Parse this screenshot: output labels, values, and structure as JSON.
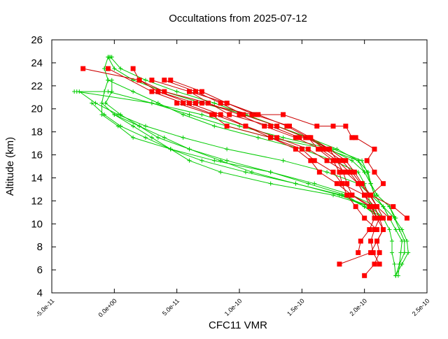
{
  "chart_data": {
    "type": "line",
    "title": "Occultations from 2025-07-12",
    "xlabel": "CFC11 VMR",
    "ylabel": "Altitude (km)",
    "xlim": [
      -5e-11,
      2.5e-10
    ],
    "ylim": [
      4,
      26
    ],
    "x_ticks": [
      {
        "value": -5e-11,
        "label": "-5.0e-11"
      },
      {
        "value": 0,
        "label": "0.0e+00"
      },
      {
        "value": 5e-11,
        "label": "5.0e-11"
      },
      {
        "value": 1e-10,
        "label": "1.0e-10"
      },
      {
        "value": 1.5e-10,
        "label": "1.5e-10"
      },
      {
        "value": 2e-10,
        "label": "2.0e-10"
      },
      {
        "value": 2.5e-10,
        "label": "2.5e-10"
      }
    ],
    "y_ticks": [
      {
        "value": 4,
        "label": "4"
      },
      {
        "value": 6,
        "label": "6"
      },
      {
        "value": 8,
        "label": "8"
      },
      {
        "value": 10,
        "label": "10"
      },
      {
        "value": 12,
        "label": "12"
      },
      {
        "value": 14,
        "label": "14"
      },
      {
        "value": 16,
        "label": "16"
      },
      {
        "value": 18,
        "label": "18"
      },
      {
        "value": 20,
        "label": "20"
      },
      {
        "value": 22,
        "label": "22"
      },
      {
        "value": 24,
        "label": "24"
      },
      {
        "value": 26,
        "label": "26"
      }
    ],
    "grid": false,
    "colors": {
      "red_series": "#cc0000",
      "red_marker": "#ff0000",
      "green_series": "#00cc00"
    },
    "series": [
      {
        "style": "red-square",
        "x": [
          2.34e-10,
          2.23e-10,
          2.05e-10,
          2.15e-10,
          2.08e-10,
          2.02e-10,
          2.08e-10,
          1.93e-10,
          1.9e-10,
          1.85e-10,
          1.75e-10,
          1.62e-10,
          1.35e-10,
          1.1e-10,
          7e-11,
          6.5e-11,
          3.5e-11,
          2e-11,
          -2.5e-11
        ],
        "y": [
          10.5,
          11.5,
          12.5,
          13.5,
          14.5,
          15.5,
          16.5,
          17.5,
          17.5,
          18.5,
          18.5,
          18.5,
          19.5,
          19.5,
          20.5,
          20.5,
          21.5,
          22.5,
          23.5
        ]
      },
      {
        "style": "red-square",
        "x": [
          1.8e-10,
          2.05e-10,
          2.1e-10,
          2.15e-10,
          2.12e-10,
          2.08e-10,
          2e-10,
          1.82e-10,
          1.75e-10,
          1.6e-10,
          1.5e-10,
          1.25e-10,
          1.05e-10,
          8.5e-11,
          6e-11,
          3.5e-11,
          2e-11,
          1.5e-11
        ],
        "y": [
          6.5,
          7.5,
          8.5,
          9.5,
          10.5,
          11.5,
          12.5,
          13.5,
          14.5,
          15.5,
          16.5,
          17.5,
          18.5,
          19.5,
          20.5,
          21.5,
          22.5,
          23.5
        ]
      },
      {
        "style": "red-square",
        "x": [
          2e-10,
          2.08e-10,
          2.12e-10,
          2.1e-10,
          2.15e-10,
          2.1e-10,
          2.05e-10,
          2e-10,
          1.95e-10,
          1.85e-10,
          1.7e-10,
          1.55e-10,
          1.3e-10,
          1.05e-10,
          8e-11,
          5.5e-11,
          3e-11,
          -5e-12
        ],
        "y": [
          5.5,
          6.5,
          7.5,
          8.5,
          9.5,
          10.5,
          11.5,
          12.5,
          13.5,
          14.5,
          15.5,
          16.5,
          17.5,
          18.5,
          19.5,
          20.5,
          21.5,
          23.5
        ]
      },
      {
        "style": "red-square",
        "x": [
          2.12e-10,
          2.07e-10,
          2.05e-10,
          2.08e-10,
          2.12e-10,
          2.08e-10,
          2e-10,
          1.95e-10,
          1.88e-10,
          1.78e-10,
          1.65e-10,
          1.45e-10,
          1.2e-10,
          1e-10,
          7.5e-11,
          4e-11,
          2e-11
        ],
        "y": [
          6.5,
          7.5,
          8.5,
          9.5,
          10.5,
          11.5,
          12.5,
          13.5,
          14.5,
          15.5,
          16.5,
          17.5,
          18.5,
          19.5,
          20.5,
          21.5,
          22.5
        ]
      },
      {
        "style": "red-square",
        "x": [
          1.95e-10,
          1.97e-10,
          2.04e-10,
          2.08e-10,
          2.04e-10,
          1.9e-10,
          1.86e-10,
          1.83e-10,
          1.78e-10,
          1.72e-10,
          1.57e-10,
          1.4e-10,
          1.12e-10,
          9e-11,
          6e-11,
          3e-11
        ],
        "y": [
          7.5,
          8.5,
          9.5,
          10.5,
          11.5,
          12.5,
          13.5,
          14.5,
          15.5,
          16.5,
          17.5,
          18.5,
          19.5,
          20.5,
          21.5,
          22.5
        ]
      },
      {
        "style": "red-square",
        "x": [
          2.1e-10,
          2e-10,
          1.93e-10,
          1.86e-10,
          1.82e-10,
          1.8e-10,
          1.75e-10,
          1.63e-10,
          1.55e-10,
          1.38e-10,
          1.15e-10,
          9e-11,
          7e-11,
          4.5e-11
        ],
        "y": [
          9.5,
          10.5,
          11.5,
          12.5,
          13.5,
          14.5,
          15.5,
          16.5,
          17.5,
          18.5,
          19.5,
          20.5,
          21.5,
          22.5
        ]
      },
      {
        "style": "red-square",
        "x": [
          2.15e-10,
          2.1e-10,
          2.05e-10,
          1.98e-10,
          1.92e-10,
          1.85e-10,
          1.72e-10,
          1.53e-10,
          1.3e-10,
          1.03e-10,
          8.5e-11,
          6.5e-11,
          4e-11
        ],
        "y": [
          10.5,
          11.5,
          12.5,
          13.5,
          14.5,
          15.5,
          16.5,
          17.5,
          18.5,
          19.5,
          20.5,
          21.5,
          22.5
        ]
      },
      {
        "style": "red-square",
        "x": [
          2.2e-10,
          2.1e-10,
          2.04e-10,
          1.97e-10,
          1.9e-10,
          1.82e-10,
          1.68e-10,
          1.56e-10,
          1.48e-10,
          1.25e-10,
          9.2e-11,
          6e-11
        ],
        "y": [
          10.5,
          11.5,
          12.5,
          13.5,
          14.5,
          15.5,
          16.5,
          17.5,
          17.5,
          18.5,
          19.5,
          21.5
        ]
      },
      {
        "style": "red-square",
        "x": [
          2.1e-10,
          2.06e-10,
          1.9e-10,
          1.78e-10,
          1.64e-10,
          1.57e-10,
          1.45e-10,
          1.25e-10,
          9e-11,
          7.8e-11,
          5e-11
        ],
        "y": [
          10.5,
          11.5,
          12.5,
          13.5,
          14.5,
          15.5,
          16.5,
          17.5,
          18.5,
          19.5,
          20.5
        ]
      },
      {
        "style": "green-plus",
        "x": [
          2.25e-10,
          2.28e-10,
          2.32e-10,
          2.32e-10,
          2.28e-10,
          2.24e-10,
          2.15e-10,
          2.08e-10,
          2.05e-10,
          2.02e-10,
          1.98e-10,
          1.75e-10,
          1.35e-10,
          1e-10,
          7e-11,
          3e-11,
          -3e-11
        ],
        "y": [
          5.5,
          6.5,
          7.5,
          8.5,
          9.5,
          10.5,
          11.5,
          12.5,
          13.5,
          14.5,
          15.5,
          16.5,
          17.5,
          18.5,
          19.5,
          20.5,
          21.5
        ]
      },
      {
        "style": "green-plus",
        "x": [
          2.25e-10,
          2.3e-10,
          2.35e-10,
          2.34e-10,
          2.3e-10,
          2.24e-10,
          2.2e-10,
          2.1e-10,
          2.05e-10,
          2.03e-10,
          1.95e-10,
          1.7e-10,
          1.25e-10,
          9e-11,
          6e-11,
          3e-11,
          -5e-12,
          -3.2e-11
        ],
        "y": [
          5.5,
          6.5,
          7.5,
          8.5,
          9.5,
          10.5,
          11.5,
          12.5,
          13.5,
          14.5,
          15.5,
          16.5,
          17.5,
          18.5,
          19.5,
          20.5,
          21.5,
          21.5
        ]
      },
      {
        "style": "green-plus",
        "x": [
          2.27e-10,
          2.28e-10,
          2.29e-10,
          2.3e-10,
          2.25e-10,
          2.2e-10,
          2.15e-10,
          2.05e-10,
          1.95e-10,
          1.7e-10,
          1.35e-10,
          9e-11,
          5.5e-11,
          2.5e-11,
          3e-12,
          -1.5e-11,
          -2.8e-11
        ],
        "y": [
          5.5,
          6.5,
          7.5,
          8.5,
          9.5,
          10.5,
          11.5,
          12.5,
          13.5,
          14.5,
          15.5,
          16.5,
          17.5,
          18.5,
          19.5,
          20.5,
          21.5
        ]
      },
      {
        "style": "green-plus",
        "x": [
          2.25e-10,
          2.24e-10,
          2.22e-10,
          2.22e-10,
          2.2e-10,
          2.15e-10,
          2.1e-10,
          1.9e-10,
          1.6e-10,
          1.25e-10,
          8e-11,
          4.5e-11,
          1.5e-11,
          3e-12,
          -1e-11,
          -1e-11,
          -8e-12,
          -5e-12
        ],
        "y": [
          5.5,
          6.5,
          7.5,
          8.5,
          9.5,
          10.5,
          11.5,
          12.5,
          13.5,
          14.5,
          15.5,
          16.5,
          17.5,
          18.5,
          19.5,
          20.5,
          21.5,
          22.5
        ]
      },
      {
        "style": "green-plus",
        "x": [
          2.15e-10,
          2.05e-10,
          1.8e-10,
          1.45e-10,
          1.05e-10,
          7e-11,
          4.5e-11,
          2.5e-11,
          5e-12,
          -8e-12,
          -1.8e-11
        ],
        "y": [
          10.5,
          11.5,
          12.5,
          13.5,
          14.5,
          15.5,
          16.5,
          17.5,
          18.5,
          19.5,
          20.5
        ]
      },
      {
        "style": "green-plus",
        "x": [
          2.15e-10,
          2e-10,
          1.85e-10,
          1.55e-10,
          1.25e-10,
          9e-11,
          6e-11,
          4e-11,
          2e-11,
          0
        ],
        "y": [
          10.5,
          11.5,
          12.5,
          13.5,
          14.5,
          15.5,
          16.5,
          17.5,
          18.5,
          19.5
        ]
      },
      {
        "style": "green-plus",
        "x": [
          2.12e-10,
          2e-10,
          1.82e-10,
          1.45e-10,
          1.1e-10,
          8.5e-11,
          6e-11,
          3.5e-11,
          2e-11,
          5e-12,
          -7e-12,
          -2e-12,
          -2e-12
        ],
        "y": [
          10.5,
          11.5,
          12.5,
          13.5,
          14.5,
          15.5,
          16.5,
          17.5,
          18.5,
          19.5,
          20.5,
          21.5,
          22.5
        ]
      },
      {
        "style": "green-plus",
        "x": [
          2.15e-10,
          2.05e-10,
          1.75e-10,
          1.25e-10,
          8.5e-11,
          6e-11,
          4.5e-11,
          3e-11,
          1.5e-11,
          0,
          -1e-11
        ],
        "y": [
          10.5,
          11.5,
          12.5,
          13.5,
          14.5,
          15.5,
          16.5,
          17.5,
          18.5,
          19.5,
          20.5
        ]
      },
      {
        "style": "green-plus",
        "x": [
          2.1e-10,
          2.05e-10,
          2.03e-10,
          2e-10,
          1.95e-10,
          1.75e-10,
          1.5e-10,
          1.15e-10,
          8e-11,
          5.5e-11,
          3.5e-11,
          1.5e-11,
          -5e-12,
          -8e-12,
          -5e-12,
          -4e-12,
          -2e-12
        ],
        "y": [
          10.5,
          11.5,
          12.5,
          13.5,
          14.5,
          15.5,
          16.5,
          17.5,
          18.5,
          19.5,
          20.5,
          21.5,
          22.5,
          23.5,
          24.5,
          24.5,
          24.5
        ]
      },
      {
        "style": "green-plus",
        "x": [
          2.2e-10,
          2.15e-10,
          2.08e-10,
          2.05e-10,
          2e-10,
          1.9e-10,
          1.72e-10,
          1.55e-10,
          1.3e-10,
          1.05e-10,
          7e-11,
          4e-11,
          1.5e-11,
          0,
          -5e-12
        ],
        "y": [
          10.5,
          11.5,
          12.5,
          13.5,
          14.5,
          15.5,
          16.5,
          17.5,
          18.5,
          19.5,
          20.5,
          21.5,
          22.5,
          23.5,
          24.5
        ]
      },
      {
        "style": "green-plus",
        "x": [
          2.25e-10,
          2.2e-10,
          2.1e-10,
          2.05e-10,
          2e-10,
          1.95e-10,
          1.78e-10,
          1.55e-10,
          1.3e-10,
          1.05e-10,
          8e-11,
          5e-11,
          2.5e-11,
          5e-12,
          -3e-12
        ],
        "y": [
          10.5,
          11.5,
          12.5,
          13.5,
          14.5,
          15.5,
          16.5,
          17.5,
          18.5,
          19.5,
          20.5,
          21.5,
          22.5,
          23.5,
          24.5
        ]
      }
    ]
  }
}
